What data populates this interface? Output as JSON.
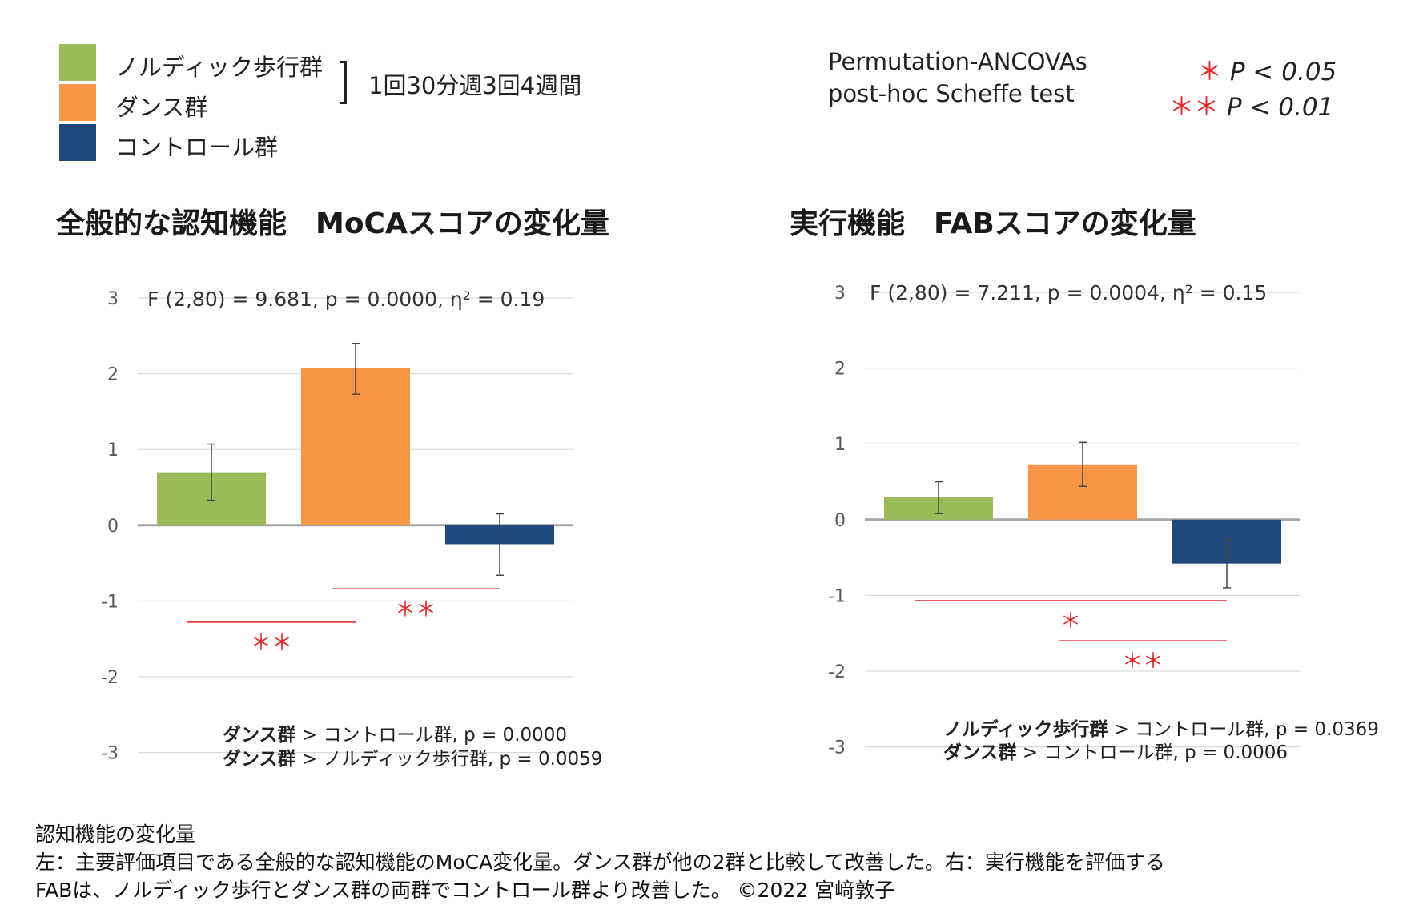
{
  "legend": {
    "items": [
      {
        "label": "ノルディック歩行群",
        "color": "#9bbb59"
      },
      {
        "label": "ダンス群",
        "color": "#f79646"
      },
      {
        "label": "コントロール群",
        "color": "#1f497d"
      }
    ],
    "protocol": "1回30分週3回4週間"
  },
  "stats": {
    "method_line1": "Permutation-ANCOVAs",
    "method_line2": "post-hoc Scheffe test",
    "sig1_star": "＊",
    "sig1_text": "P < 0.05",
    "sig2_star": "＊＊",
    "sig2_text": "P < 0.01"
  },
  "chart_data": [
    {
      "type": "bar",
      "title": "全般的な認知機能　MoCAスコアの変化量",
      "categories": [
        "ノルディック歩行群",
        "ダンス群",
        "コントロール群"
      ],
      "values": [
        0.7,
        2.07,
        -0.25
      ],
      "error_low": [
        0.33,
        1.73,
        -0.66
      ],
      "error_high": [
        1.07,
        2.4,
        0.15
      ],
      "ylim": [
        -3,
        3
      ],
      "yticks": [
        "3",
        "2",
        "1",
        "0",
        "-1",
        "-2",
        "-3"
      ],
      "annotation": "F (2,80) = 9.681, p = 0.0000, η² = 0.19",
      "significance": [
        {
          "from": 1,
          "to": 2,
          "y": -0.84,
          "mark": "＊＊"
        },
        {
          "from": 0,
          "to": 1,
          "y": -1.28,
          "mark": "＊＊"
        }
      ],
      "comparisons": [
        {
          "group": "ダンス群",
          "text": " > コントロール群, p = 0.0000"
        },
        {
          "group": "ダンス群",
          "text": " > ノルディック歩行群, p = 0.0059"
        }
      ]
    },
    {
      "type": "bar",
      "title": "実行機能　FABスコアの変化量",
      "categories": [
        "ノルディック歩行群",
        "ダンス群",
        "コントロール群"
      ],
      "values": [
        0.3,
        0.73,
        -0.58
      ],
      "error_low": [
        0.08,
        0.44,
        -0.9
      ],
      "error_high": [
        0.5,
        1.02,
        -0.27
      ],
      "ylim": [
        -3,
        3
      ],
      "yticks": [
        "3",
        "2",
        "1",
        "0",
        "-1",
        "-2",
        "-3"
      ],
      "annotation": "F (2,80) = 7.211, p = 0.0004, η² = 0.15",
      "significance": [
        {
          "from": 0,
          "to": 2,
          "y": -1.07,
          "mark": "＊"
        },
        {
          "from": 1,
          "to": 2,
          "y": -1.6,
          "mark": "＊＊"
        }
      ],
      "comparisons": [
        {
          "group": "ノルディック歩行群",
          "text": " > コントロール群, p = 0.0369"
        },
        {
          "group": "ダンス群",
          "text": " > コントロール群, p = 0.0006"
        }
      ]
    }
  ],
  "caption": {
    "line1": "認知機能の変化量",
    "line2": "左：主要評価項目である全般的な認知機能のMoCA変化量。ダンス群が他の2群と比較して改善した。右：実行機能を評価する",
    "line3": "FABは、ノルディック歩行とダンス群の両群でコントロール群より改善した。 ©2022 宮﨑敦子"
  },
  "colors": {
    "significance": "#e32222",
    "grid": "#d9d9d9",
    "zero_line": "#a6a6a6",
    "error_bar": "#444444"
  }
}
